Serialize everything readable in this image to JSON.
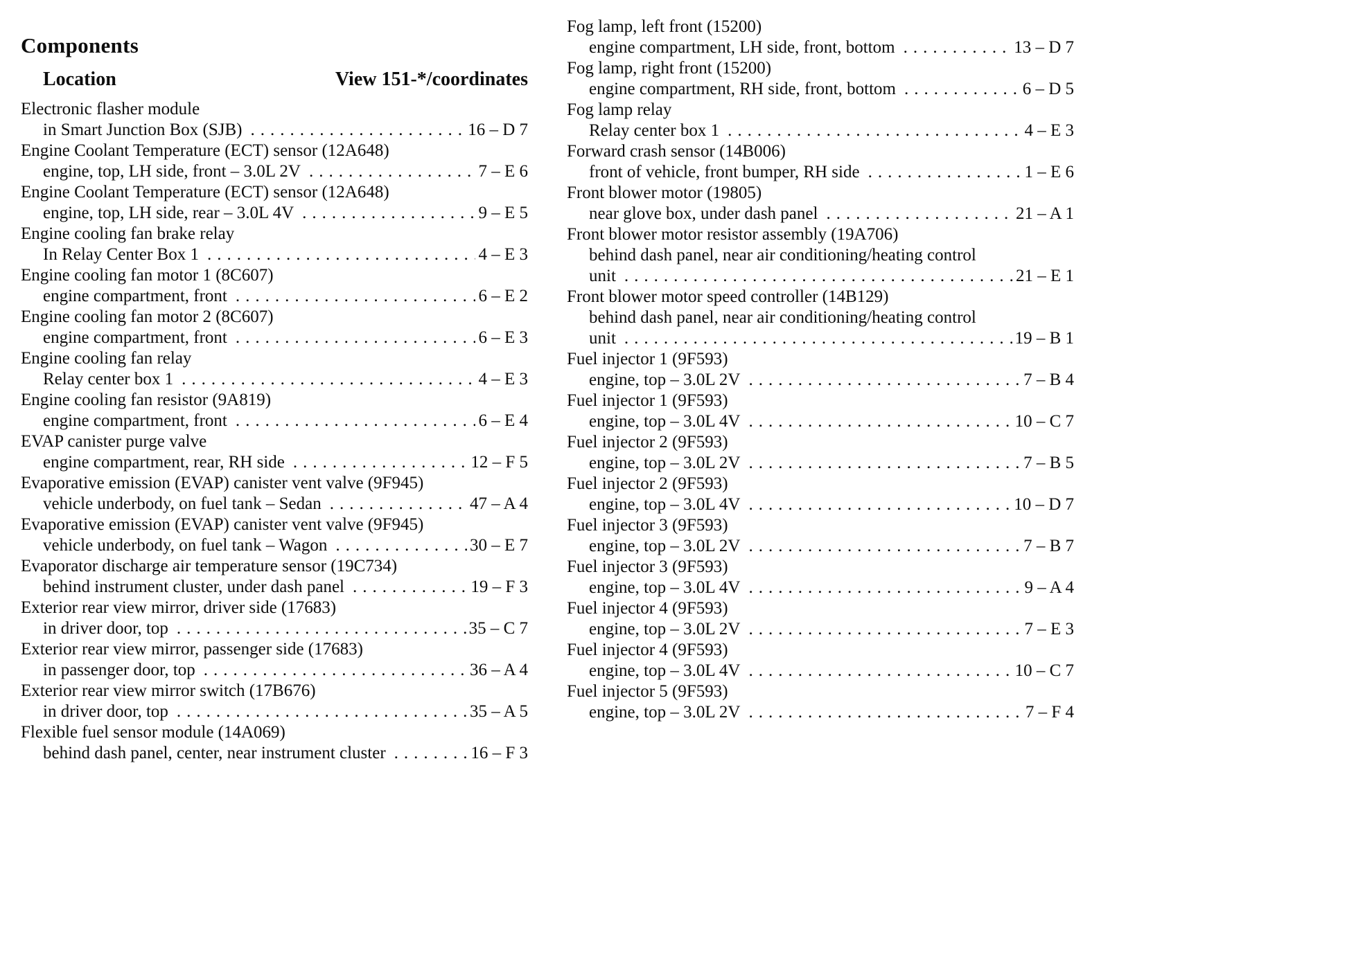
{
  "page": {
    "title": "Components",
    "headers": {
      "location": "Location",
      "view": "View 151-*/coordinates"
    }
  },
  "columns": {
    "left": [
      {
        "name": "Electronic flasher module",
        "locations": [
          "in Smart Junction Box (SJB)"
        ],
        "coord": "16 – D 7"
      },
      {
        "name": "Engine Coolant Temperature (ECT) sensor (12A648)",
        "locations": [
          "engine, top, LH side, front – 3.0L 2V"
        ],
        "coord": "7 – E 6"
      },
      {
        "name": "Engine Coolant Temperature (ECT) sensor (12A648)",
        "locations": [
          "engine, top, LH side, rear – 3.0L 4V"
        ],
        "coord": "9 – E 5"
      },
      {
        "name": "Engine cooling fan brake relay",
        "locations": [
          "In Relay Center Box 1"
        ],
        "coord": "4 – E 3"
      },
      {
        "name": "Engine cooling fan motor 1 (8C607)",
        "locations": [
          "engine compartment, front"
        ],
        "coord": "6 – E 2"
      },
      {
        "name": "Engine cooling fan motor 2 (8C607)",
        "locations": [
          "engine compartment, front"
        ],
        "coord": "6 – E 3"
      },
      {
        "name": "Engine cooling fan relay",
        "locations": [
          "Relay center box 1"
        ],
        "coord": "4 – E 3"
      },
      {
        "name": "Engine cooling fan resistor (9A819)",
        "locations": [
          "engine compartment, front"
        ],
        "coord": "6 – E 4"
      },
      {
        "name": "EVAP canister purge valve",
        "locations": [
          "engine compartment, rear, RH side"
        ],
        "coord": "12 – F 5"
      },
      {
        "name": "Evaporative emission (EVAP) canister vent valve (9F945)",
        "locations": [
          "vehicle underbody, on fuel tank – Sedan"
        ],
        "coord": "47 – A 4"
      },
      {
        "name": "Evaporative emission (EVAP) canister vent valve (9F945)",
        "locations": [
          "vehicle underbody, on fuel tank – Wagon"
        ],
        "coord": "30 – E 7"
      },
      {
        "name": "Evaporator discharge air temperature sensor (19C734)",
        "locations": [
          "behind instrument cluster, under dash panel"
        ],
        "coord": "19 – F 3"
      },
      {
        "name": "Exterior rear view mirror, driver side (17683)",
        "locations": [
          "in driver door, top"
        ],
        "coord": "35 – C 7"
      },
      {
        "name": "Exterior rear view mirror, passenger side (17683)",
        "locations": [
          "in passenger door, top"
        ],
        "coord": "36 – A 4"
      },
      {
        "name": "Exterior rear view mirror switch (17B676)",
        "locations": [
          "in driver door, top"
        ],
        "coord": "35 – A 5"
      },
      {
        "name": "Flexible fuel sensor module (14A069)",
        "locations": [
          "behind dash panel, center, near instrument cluster"
        ],
        "coord": "16 – F 3"
      }
    ],
    "right": [
      {
        "name": "Fog lamp, left front (15200)",
        "locations": [
          "engine compartment, LH side, front, bottom"
        ],
        "coord": "13 – D 7"
      },
      {
        "name": "Fog lamp, right front (15200)",
        "locations": [
          "engine compartment, RH side, front, bottom"
        ],
        "coord": "6 – D 5"
      },
      {
        "name": "Fog lamp relay",
        "locations": [
          "Relay center box 1"
        ],
        "coord": "4 – E 3"
      },
      {
        "name": "Forward crash sensor (14B006)",
        "locations": [
          "front of vehicle, front bumper, RH side"
        ],
        "coord": "1 – E 6"
      },
      {
        "name": "Front blower motor (19805)",
        "locations": [
          "near glove box, under dash panel"
        ],
        "coord": "21 – A 1"
      },
      {
        "name": "Front blower motor resistor assembly (19A706)",
        "locations": [
          "behind dash panel, near air conditioning/heating control",
          "unit"
        ],
        "coord": "21 – E 1"
      },
      {
        "name": "Front blower motor speed controller (14B129)",
        "locations": [
          "behind dash panel, near air conditioning/heating control",
          "unit"
        ],
        "coord": "19 – B 1"
      },
      {
        "name": "Fuel injector 1 (9F593)",
        "locations": [
          "engine, top – 3.0L 2V"
        ],
        "coord": "7 – B 4"
      },
      {
        "name": "Fuel injector 1 (9F593)",
        "locations": [
          "engine, top – 3.0L 4V"
        ],
        "coord": "10 – C 7"
      },
      {
        "name": "Fuel injector 2 (9F593)",
        "locations": [
          "engine, top – 3.0L 2V"
        ],
        "coord": "7 – B 5"
      },
      {
        "name": "Fuel injector 2 (9F593)",
        "locations": [
          "engine, top – 3.0L 4V"
        ],
        "coord": "10 – D 7"
      },
      {
        "name": "Fuel injector 3 (9F593)",
        "locations": [
          "engine, top – 3.0L 2V"
        ],
        "coord": "7 – B 7"
      },
      {
        "name": "Fuel injector 3 (9F593)",
        "locations": [
          "engine, top – 3.0L 4V"
        ],
        "coord": "9 – A 4"
      },
      {
        "name": "Fuel injector 4 (9F593)",
        "locations": [
          "engine, top – 3.0L 2V"
        ],
        "coord": "7 – E 3"
      },
      {
        "name": "Fuel injector 4 (9F593)",
        "locations": [
          "engine, top – 3.0L 4V"
        ],
        "coord": "10 – C 7"
      },
      {
        "name": "Fuel injector 5 (9F593)",
        "locations": [
          "engine, top – 3.0L 2V"
        ],
        "coord": "7 – F 4"
      }
    ]
  }
}
